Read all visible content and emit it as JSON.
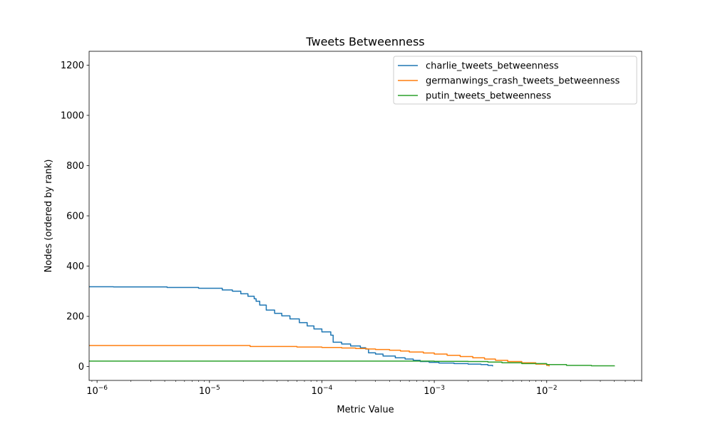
{
  "chart_data": {
    "type": "line",
    "title": "Tweets Betweenness",
    "xlabel": "Metric Value",
    "ylabel": "Nodes (ordered by rank)",
    "xscale": "log",
    "xlim": [
      8.5e-07,
      0.07
    ],
    "ylim": [
      -55,
      1255
    ],
    "xticks": [
      {
        "value": 1e-06,
        "base": "10",
        "exp": "−6"
      },
      {
        "value": 1e-05,
        "base": "10",
        "exp": "−5"
      },
      {
        "value": 0.0001,
        "base": "10",
        "exp": "−4"
      },
      {
        "value": 0.001,
        "base": "10",
        "exp": "−3"
      },
      {
        "value": 0.01,
        "base": "10",
        "exp": "−2"
      }
    ],
    "yticks": [
      {
        "value": 0,
        "label": "0"
      },
      {
        "value": 200,
        "label": "200"
      },
      {
        "value": 400,
        "label": "400"
      },
      {
        "value": 600,
        "label": "600"
      },
      {
        "value": 800,
        "label": "800"
      },
      {
        "value": 1000,
        "label": "1000"
      },
      {
        "value": 1200,
        "label": "1200"
      }
    ],
    "grid": false,
    "legend_position": "top-right",
    "series": [
      {
        "name": "charlie_tweets_betweenness",
        "color": "#1f77b4",
        "x": [
          8.5e-07,
          1.4e-06,
          4.2e-06,
          8e-06,
          1.3e-05,
          1.6e-05,
          1.9e-05,
          2.2e-05,
          2.5e-05,
          2.6e-05,
          2.8e-05,
          3.2e-05,
          3.8e-05,
          4.4e-05,
          5.2e-05,
          6.3e-05,
          7.4e-05,
          8.5e-05,
          0.0001,
          0.00012,
          0.000126,
          0.00015,
          0.00018,
          0.00022,
          0.000245,
          0.00026,
          0.0003,
          0.00035,
          0.00045,
          0.00055,
          0.00065,
          0.00075,
          0.0009,
          0.0011,
          0.0015,
          0.002,
          0.0026,
          0.003,
          0.0033
        ],
        "y": [
          318,
          317,
          315,
          312,
          305,
          300,
          290,
          280,
          270,
          260,
          245,
          225,
          212,
          202,
          190,
          175,
          162,
          150,
          138,
          125,
          97,
          90,
          82,
          75,
          70,
          55,
          50,
          42,
          35,
          30,
          25,
          20,
          17,
          14,
          12,
          10,
          8,
          5,
          1
        ]
      },
      {
        "name": "germanwings_crash_tweets_betweenness",
        "color": "#ff7f0e",
        "x": [
          8.5e-07,
          2.2e-05,
          2.3e-05,
          6e-05,
          0.0001,
          0.00015,
          0.0002,
          0.00025,
          0.0003,
          0.0004,
          0.0005,
          0.0006,
          0.0008,
          0.001,
          0.0013,
          0.0017,
          0.0022,
          0.0028,
          0.0035,
          0.0045,
          0.006,
          0.008,
          0.01,
          0.0105
        ],
        "y": [
          84,
          84,
          80,
          78,
          76,
          74,
          72,
          70,
          68,
          65,
          62,
          58,
          54,
          50,
          45,
          40,
          35,
          30,
          25,
          20,
          15,
          10,
          5,
          1
        ]
      },
      {
        "name": "putin_tweets_betweenness",
        "color": "#2ca02c",
        "x": [
          8.5e-07,
          0.0005,
          0.001,
          0.002,
          0.003,
          0.004,
          0.006,
          0.01,
          0.015,
          0.025,
          0.04
        ],
        "y": [
          22,
          22,
          21,
          20,
          18,
          15,
          12,
          8,
          5,
          3,
          1
        ]
      }
    ]
  }
}
